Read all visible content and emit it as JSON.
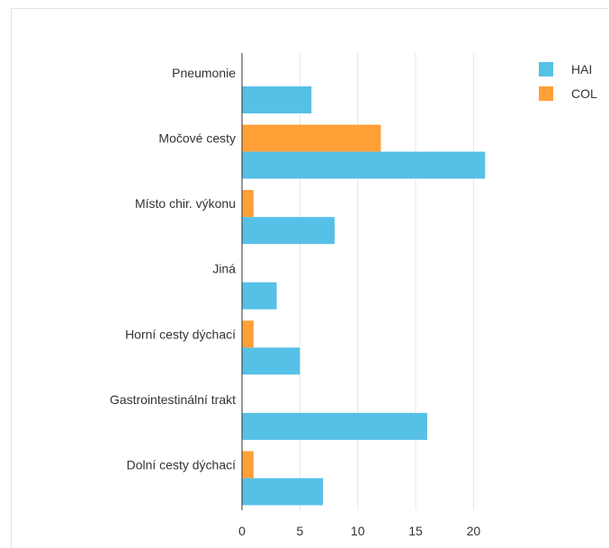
{
  "chart_data": {
    "type": "bar",
    "orientation": "horizontal",
    "categories": [
      "Pneumonie",
      "Močové cesty",
      "Místo chir. výkonu",
      "Jiná",
      "Horní cesty dýchací",
      "Gastrointestinální trakt",
      "Dolní cesty dýchací"
    ],
    "series": [
      {
        "name": "HAI",
        "color": "#57c0e6",
        "values": [
          6,
          21,
          8,
          3,
          5,
          16,
          7
        ]
      },
      {
        "name": "COL",
        "color": "#ffa037",
        "values": [
          0,
          12,
          1,
          0,
          1,
          0,
          1
        ]
      }
    ],
    "xticks": [
      0,
      5,
      10,
      15,
      20
    ],
    "xlim": [
      0,
      23
    ],
    "grid": true,
    "legend_position": "top-right",
    "title": "",
    "xlabel": "",
    "ylabel": ""
  }
}
